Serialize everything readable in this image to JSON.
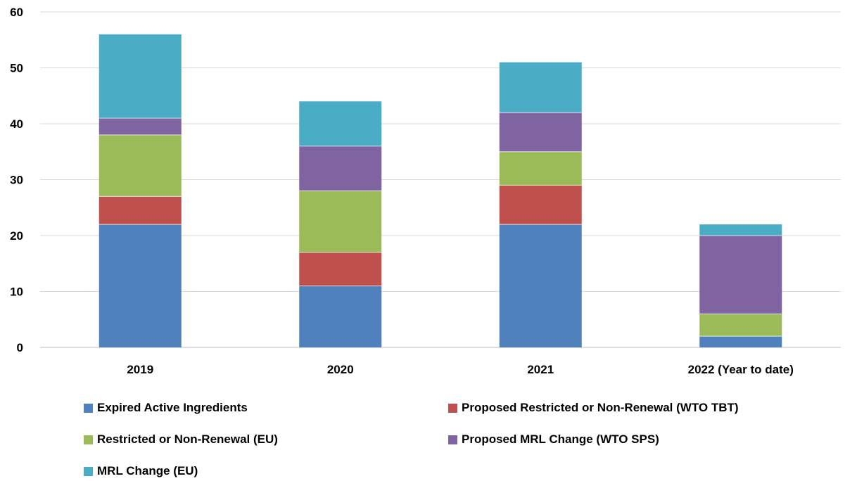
{
  "chart_data": {
    "type": "bar",
    "stacked": true,
    "categories": [
      "2019",
      "2020",
      "2021",
      "2022 (Year to date)"
    ],
    "series": [
      {
        "name": "Expired Active Ingredients",
        "color": "#4F81BD",
        "values": [
          22,
          11,
          22,
          2
        ]
      },
      {
        "name": "Proposed Restricted or Non-Renewal (WTO TBT)",
        "color": "#C0504D",
        "values": [
          5,
          6,
          7,
          0
        ]
      },
      {
        "name": "Restricted or Non-Renewal (EU)",
        "color": "#9BBB59",
        "values": [
          11,
          11,
          6,
          4
        ]
      },
      {
        "name": "Proposed MRL Change (WTO SPS)",
        "color": "#8064A2",
        "values": [
          3,
          8,
          7,
          14
        ]
      },
      {
        "name": "MRL Change (EU)",
        "color": "#4BACC6",
        "values": [
          15,
          8,
          9,
          2
        ]
      }
    ],
    "ylim": [
      0,
      60
    ],
    "yticks": [
      "0",
      "10",
      "20",
      "30",
      "40",
      "50",
      "60"
    ],
    "grid": true,
    "legend_position": "bottom"
  }
}
